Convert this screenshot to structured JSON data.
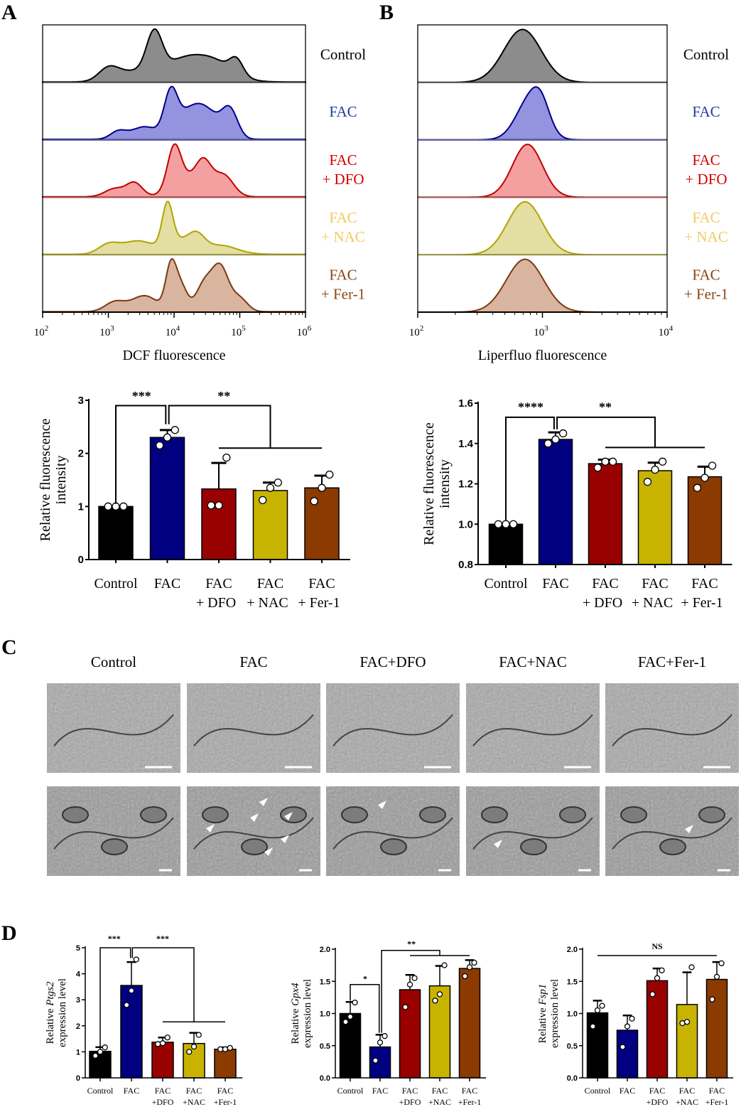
{
  "panels": {
    "a": "A",
    "b": "B",
    "c": "C",
    "d": "D"
  },
  "condition_names": [
    "Control",
    "FAC",
    "FAC+DFO",
    "FAC+NAC",
    "FAC+Fer-1"
  ],
  "colors": {
    "bars": [
      "#000000",
      "#000080",
      "#990000",
      "#c8b400",
      "#8b3a00"
    ],
    "hist_fill": [
      "#8c8c8c",
      "#9393df",
      "#f4a0a0",
      "#e3dea2",
      "#d9b49e"
    ],
    "hist_stroke": [
      "#000000",
      "#00008b",
      "#c00000",
      "#b0a400",
      "#7a3a10"
    ],
    "legend_text": [
      "#000000",
      "#1f3fa0",
      "#d40000",
      "#f0cc60",
      "#8b4513"
    ]
  },
  "chart_data": [
    {
      "id": "A-hist",
      "type": "area",
      "title": "",
      "xlabel": "DCF fluorescence",
      "xscale": "log",
      "xlim_log10": [
        2,
        6
      ],
      "tick_labels": [
        {
          "base": "10",
          "exp": "2"
        },
        {
          "base": "10",
          "exp": "3"
        },
        {
          "base": "10",
          "exp": "4"
        },
        {
          "base": "10",
          "exp": "5"
        },
        {
          "base": "10",
          "exp": "6"
        }
      ],
      "series": [
        {
          "name": [
            "Control"
          ],
          "components": [
            [
              3.0,
              0.15,
              0.25
            ],
            [
              3.35,
              0.25,
              0.2
            ],
            [
              3.7,
              0.12,
              0.85
            ],
            [
              4.1,
              0.3,
              0.4
            ],
            [
              4.6,
              0.3,
              0.4
            ],
            [
              4.95,
              0.1,
              0.3
            ]
          ]
        },
        {
          "name": [
            "FAC"
          ],
          "components": [
            [
              3.15,
              0.12,
              0.15
            ],
            [
              3.55,
              0.2,
              0.25
            ],
            [
              3.95,
              0.1,
              0.8
            ],
            [
              4.2,
              0.2,
              0.45
            ],
            [
              4.5,
              0.2,
              0.5
            ],
            [
              4.85,
              0.12,
              0.55
            ]
          ]
        },
        {
          "name": [
            "FAC",
            "+ DFO"
          ],
          "components": [
            [
              3.1,
              0.15,
              0.15
            ],
            [
              3.4,
              0.12,
              0.25
            ],
            [
              4.0,
              0.1,
              0.7
            ],
            [
              4.15,
              0.2,
              0.35
            ],
            [
              4.45,
              0.12,
              0.55
            ],
            [
              4.75,
              0.15,
              0.4
            ]
          ]
        },
        {
          "name": [
            "FAC",
            "+ NAC"
          ],
          "components": [
            [
              3.0,
              0.15,
              0.2
            ],
            [
              3.45,
              0.25,
              0.3
            ],
            [
              3.9,
              0.08,
              0.95
            ],
            [
              4.1,
              0.2,
              0.3
            ],
            [
              4.35,
              0.12,
              0.3
            ],
            [
              4.7,
              0.25,
              0.2
            ]
          ]
        },
        {
          "name": [
            "FAC",
            "+ Fer-1"
          ],
          "components": [
            [
              3.1,
              0.15,
              0.15
            ],
            [
              3.55,
              0.2,
              0.25
            ],
            [
              3.95,
              0.08,
              0.65
            ],
            [
              4.1,
              0.1,
              0.4
            ],
            [
              4.45,
              0.12,
              0.4
            ],
            [
              4.7,
              0.13,
              0.7
            ],
            [
              5.0,
              0.12,
              0.2
            ]
          ]
        }
      ]
    },
    {
      "id": "B-hist",
      "type": "area",
      "title": "",
      "xlabel": "Liperfluo fluorescence",
      "xscale": "log",
      "xlim_log10": [
        2,
        4
      ],
      "tick_labels": [
        {
          "base": "10",
          "exp": "2"
        },
        {
          "base": "10",
          "exp": "3"
        },
        {
          "base": "10",
          "exp": "4"
        }
      ],
      "series": [
        {
          "name": [
            "Control"
          ],
          "components": [
            [
              2.84,
              0.15,
              1.0
            ]
          ]
        },
        {
          "name": [
            "FAC"
          ],
          "components": [
            [
              2.9,
              0.11,
              0.7
            ],
            [
              2.99,
              0.07,
              0.35
            ]
          ]
        },
        {
          "name": [
            "FAC",
            "+ DFO"
          ],
          "components": [
            [
              2.88,
              0.12,
              0.95
            ]
          ]
        },
        {
          "name": [
            "FAC",
            "+ NAC"
          ],
          "components": [
            [
              2.86,
              0.14,
              0.7
            ]
          ]
        },
        {
          "name": [
            "FAC",
            "+ Fer-1"
          ],
          "components": [
            [
              2.86,
              0.15,
              0.65
            ]
          ]
        }
      ]
    },
    {
      "id": "A-bar",
      "type": "bar",
      "ylabel": [
        "Relative fluorescence",
        "intensity"
      ],
      "ylim": [
        0,
        3
      ],
      "yticks": [
        {
          "v": 0,
          "t": "0"
        },
        {
          "v": 1,
          "t": "1"
        },
        {
          "v": 2,
          "t": "2"
        },
        {
          "v": 3,
          "t": "3"
        }
      ],
      "categories": [
        [
          "Control"
        ],
        [
          "FAC"
        ],
        [
          "FAC",
          "+ DFO"
        ],
        [
          "FAC",
          "+ NAC"
        ],
        [
          "FAC",
          "+ Fer-1"
        ]
      ],
      "values": [
        1.0,
        2.3,
        1.33,
        1.3,
        1.35
      ],
      "error_top": [
        1.0,
        2.44,
        1.82,
        1.45,
        1.58
      ],
      "points": [
        [
          1,
          1,
          1
        ],
        [
          2.15,
          2.3,
          2.44
        ],
        [
          1.02,
          1.02,
          1.92
        ],
        [
          1.12,
          1.35,
          1.45
        ],
        [
          1.1,
          1.35,
          1.6
        ]
      ],
      "brackets": [
        [
          [
            0,
            1.05
          ],
          [
            0,
            2.9
          ],
          [
            0.97,
            2.9
          ],
          [
            0.97,
            2.55
          ]
        ],
        [
          [
            1.03,
            2.55
          ],
          [
            1.03,
            2.9
          ],
          [
            3,
            2.9
          ],
          [
            3,
            2.1
          ]
        ],
        [
          [
            2,
            2.1
          ],
          [
            4,
            2.1
          ]
        ]
      ],
      "annotations": [
        {
          "text": "***",
          "x": 0.5,
          "y": 3.0
        },
        {
          "text": "**",
          "x": 2.1,
          "y": 3.0
        }
      ]
    },
    {
      "id": "B-bar",
      "type": "bar",
      "ylabel": [
        "Relative fluorescence",
        "intensity"
      ],
      "ylim": [
        0.8,
        1.6
      ],
      "yticks": [
        {
          "v": 0.8,
          "t": "0.8"
        },
        {
          "v": 1.0,
          "t": "1.0"
        },
        {
          "v": 1.2,
          "t": "1.2"
        },
        {
          "v": 1.4,
          "t": "1.4"
        },
        {
          "v": 1.6,
          "t": "1.6"
        }
      ],
      "categories": [
        [
          "Control"
        ],
        [
          "FAC"
        ],
        [
          "FAC",
          "+ DFO"
        ],
        [
          "FAC",
          "+ NAC"
        ],
        [
          "FAC",
          "+ Fer-1"
        ]
      ],
      "values": [
        1.0,
        1.42,
        1.3,
        1.265,
        1.235
      ],
      "error_top": [
        1.0,
        1.455,
        1.32,
        1.305,
        1.285
      ],
      "points": [
        [
          1,
          1,
          1
        ],
        [
          1.4,
          1.42,
          1.45
        ],
        [
          1.28,
          1.31,
          1.31
        ],
        [
          1.21,
          1.27,
          1.31
        ],
        [
          1.18,
          1.23,
          1.29
        ]
      ],
      "brackets": [
        [
          [
            0,
            1.02
          ],
          [
            0,
            1.53
          ],
          [
            0.97,
            1.53
          ],
          [
            0.97,
            1.47
          ]
        ],
        [
          [
            1.03,
            1.47
          ],
          [
            1.03,
            1.53
          ],
          [
            3,
            1.53
          ],
          [
            3,
            1.38
          ]
        ],
        [
          [
            2,
            1.38
          ],
          [
            4,
            1.38
          ]
        ]
      ],
      "annotations": [
        {
          "text": "****",
          "x": 0.5,
          "y": 1.56
        },
        {
          "text": "**",
          "x": 2.0,
          "y": 1.56
        }
      ]
    },
    {
      "id": "D-Ptgs2",
      "type": "bar",
      "ylabel": [
        "Relative ",
        "Ptgs2",
        " expression level"
      ],
      "ylim": [
        0,
        5
      ],
      "yticks": [
        {
          "v": 0,
          "t": "0"
        },
        {
          "v": 1,
          "t": "1"
        },
        {
          "v": 2,
          "t": "2"
        },
        {
          "v": 3,
          "t": "3"
        },
        {
          "v": 4,
          "t": "4"
        },
        {
          "v": 5,
          "t": "5"
        }
      ],
      "categories": [
        [
          "Control"
        ],
        [
          "FAC"
        ],
        [
          "FAC",
          "+DFO"
        ],
        [
          "FAC",
          "+NAC"
        ],
        [
          "FAC",
          "+Fer-1"
        ]
      ],
      "values": [
        1.02,
        3.55,
        1.37,
        1.32,
        1.1
      ],
      "error_top": [
        1.18,
        4.45,
        1.55,
        1.73,
        1.17
      ],
      "points": [
        [
          0.85,
          1.0,
          1.17
        ],
        [
          2.8,
          3.35,
          4.55
        ],
        [
          1.3,
          1.33,
          1.55
        ],
        [
          1.0,
          1.2,
          1.65
        ],
        [
          1.1,
          1.1,
          1.15
        ]
      ],
      "brackets": [
        [
          [
            0,
            1.2
          ],
          [
            0,
            5
          ],
          [
            0.97,
            5
          ],
          [
            0.97,
            4.6
          ]
        ],
        [
          [
            1.03,
            4.6
          ],
          [
            1.03,
            5
          ],
          [
            3,
            5
          ],
          [
            3,
            2.15
          ]
        ],
        [
          [
            2,
            2.15
          ],
          [
            4,
            2.15
          ]
        ]
      ],
      "annotations": [
        {
          "text": "***",
          "x": 0.45,
          "y": 5.25
        },
        {
          "text": "***",
          "x": 2.0,
          "y": 5.25
        }
      ]
    },
    {
      "id": "D-Gpx4",
      "type": "bar",
      "ylabel": [
        "Relative ",
        "Gpx4",
        " expression level"
      ],
      "ylim": [
        0,
        2
      ],
      "yticks": [
        {
          "v": 0,
          "t": "0.0"
        },
        {
          "v": 0.5,
          "t": "0.5"
        },
        {
          "v": 1,
          "t": "1.0"
        },
        {
          "v": 1.5,
          "t": "1.5"
        },
        {
          "v": 2,
          "t": "2.0"
        }
      ],
      "categories": [
        [
          "Control"
        ],
        [
          "FAC"
        ],
        [
          "FAC",
          "+DFO"
        ],
        [
          "FAC",
          "+NAC"
        ],
        [
          "FAC",
          "+Fer-1"
        ]
      ],
      "values": [
        1.0,
        0.48,
        1.37,
        1.43,
        1.7
      ],
      "error_top": [
        1.18,
        0.67,
        1.6,
        1.74,
        1.83
      ],
      "points": [
        [
          0.87,
          0.95,
          1.17
        ],
        [
          0.27,
          0.55,
          0.65
        ],
        [
          1.1,
          1.45,
          1.55
        ],
        [
          1.2,
          1.3,
          1.75
        ],
        [
          1.58,
          1.72,
          1.79
        ]
      ],
      "brackets": [
        [
          [
            0,
            1.2
          ],
          [
            0,
            1.45
          ],
          [
            0.97,
            1.45
          ],
          [
            0.97,
            0.7
          ]
        ],
        [
          [
            1.05,
            0.7
          ],
          [
            1.05,
            1.98
          ],
          [
            3,
            1.98
          ],
          [
            3,
            1.9
          ]
        ],
        [
          [
            2,
            1.9
          ],
          [
            4,
            1.9
          ]
        ]
      ],
      "annotations": [
        {
          "text": "*",
          "x": 0.5,
          "y": 1.5
        },
        {
          "text": "**",
          "x": 2.05,
          "y": 2.04
        }
      ]
    },
    {
      "id": "D-Fsp1",
      "type": "bar",
      "ylabel": [
        "Relative ",
        "Fsp1",
        " expression level"
      ],
      "ylim": [
        0,
        2
      ],
      "yticks": [
        {
          "v": 0,
          "t": "0.0"
        },
        {
          "v": 0.5,
          "t": "0.5"
        },
        {
          "v": 1,
          "t": "1.0"
        },
        {
          "v": 1.5,
          "t": "1.5"
        },
        {
          "v": 2,
          "t": "2.0"
        }
      ],
      "categories": [
        [
          "Control"
        ],
        [
          "FAC"
        ],
        [
          "FAC",
          "+DFO"
        ],
        [
          "FAC",
          "+NAC"
        ],
        [
          "FAC",
          "+Fer-1"
        ]
      ],
      "values": [
        1.01,
        0.74,
        1.51,
        1.14,
        1.53
      ],
      "error_top": [
        1.2,
        0.97,
        1.7,
        1.64,
        1.8
      ],
      "points": [
        [
          0.8,
          1.05,
          1.12
        ],
        [
          0.48,
          0.8,
          0.92
        ],
        [
          1.3,
          1.55,
          1.67
        ],
        [
          0.85,
          0.87,
          1.72
        ],
        [
          1.22,
          1.57,
          1.78
        ]
      ],
      "brackets": [
        [
          [
            0,
            1.9
          ],
          [
            4,
            1.9
          ]
        ]
      ],
      "annotations": [
        {
          "text": "NS",
          "x": 2.0,
          "y": 2.0
        }
      ]
    }
  ],
  "em": {
    "arrowheads_per_row2": [
      0,
      6,
      1,
      1,
      1
    ]
  }
}
